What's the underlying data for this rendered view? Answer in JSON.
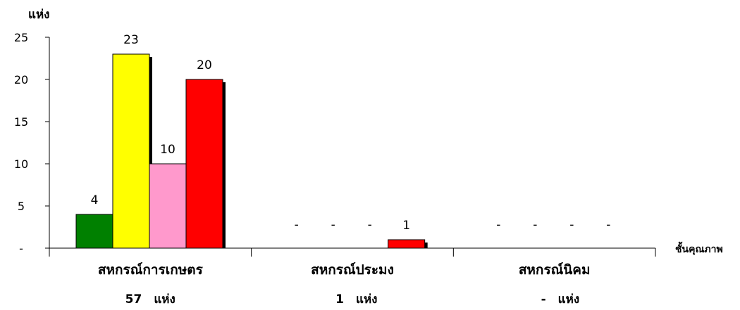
{
  "chart_data": {
    "type": "bar",
    "y_unit_label": "แห่ง",
    "x_axis_label": "ชั้นคุณภาพ",
    "yticks": [
      "-",
      "5",
      "10",
      "15",
      "20",
      "25"
    ],
    "ylim": [
      0,
      25
    ],
    "grid": false,
    "legend": "none",
    "groups": [
      {
        "name": "สหกรณ์การเกษตร",
        "total_label": "57",
        "unit": "แห่ง",
        "bars": [
          {
            "value": 4,
            "label": "4",
            "color": "#008000"
          },
          {
            "value": 23,
            "label": "23",
            "color": "#ffff00"
          },
          {
            "value": 10,
            "label": "10",
            "color": "#ff99cc"
          },
          {
            "value": 20,
            "label": "20",
            "color": "#ff0000"
          }
        ]
      },
      {
        "name": "สหกรณ์ประมง",
        "total_label": "1",
        "unit": "แห่ง",
        "bars": [
          {
            "value": 0,
            "label": "-",
            "color": "#008000"
          },
          {
            "value": 0,
            "label": "-",
            "color": "#ffff00"
          },
          {
            "value": 0,
            "label": "-",
            "color": "#ff99cc"
          },
          {
            "value": 1,
            "label": "1",
            "color": "#ff0000"
          }
        ]
      },
      {
        "name": "สหกรณ์นิคม",
        "total_label": "-",
        "unit": "แห่ง",
        "bars": [
          {
            "value": 0,
            "label": "-",
            "color": "#008000"
          },
          {
            "value": 0,
            "label": "-",
            "color": "#ffff00"
          },
          {
            "value": 0,
            "label": "-",
            "color": "#ff99cc"
          },
          {
            "value": 0,
            "label": "-",
            "color": "#ff0000"
          }
        ]
      }
    ]
  }
}
